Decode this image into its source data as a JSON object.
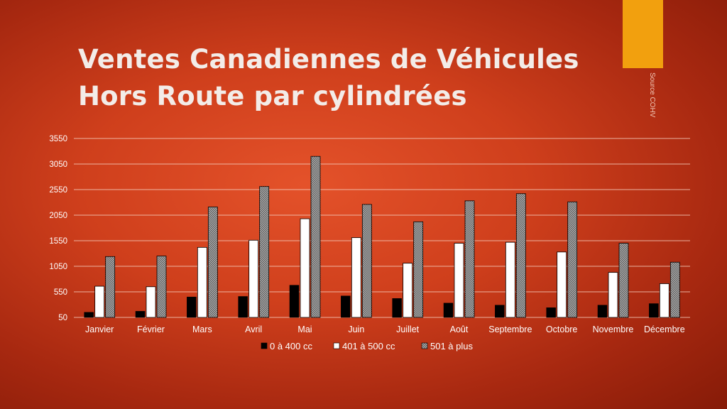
{
  "slide": {
    "title_line1": "Ventes Canadiennes de Véhicules",
    "title_line2": "Hors Route par cylindrées",
    "source": "Source COHV",
    "accent_color": "#f2a00e"
  },
  "chart_data": {
    "type": "bar",
    "title": "",
    "xlabel": "",
    "ylabel": "",
    "ylim": [
      50,
      3550
    ],
    "yticks": [
      "50",
      "550",
      "1050",
      "1550",
      "2050",
      "2550",
      "3050",
      "3550"
    ],
    "grid": true,
    "legend_position": "bottom",
    "categories": [
      "Janvier",
      "Février",
      "Mars",
      "Avril",
      "Mai",
      "Juin",
      "Juillet",
      "Août",
      "Septembre",
      "Octobre",
      "Novembre",
      "Décembre"
    ],
    "series": [
      {
        "name": "0 à 400 cc",
        "color": "#000000",
        "values": [
          150,
          170,
          450,
          460,
          680,
          470,
          420,
          330,
          290,
          240,
          290,
          320
        ]
      },
      {
        "name": "401 à 500 cc",
        "color": "#ffffff",
        "values": [
          660,
          650,
          1420,
          1560,
          1980,
          1610,
          1110,
          1500,
          1520,
          1330,
          930,
          710
        ]
      },
      {
        "name": "501 à plus",
        "color": "#9a9a9a",
        "values": [
          1240,
          1250,
          2210,
          2610,
          3200,
          2260,
          1920,
          2330,
          2470,
          2310,
          1500,
          1130
        ]
      }
    ]
  }
}
